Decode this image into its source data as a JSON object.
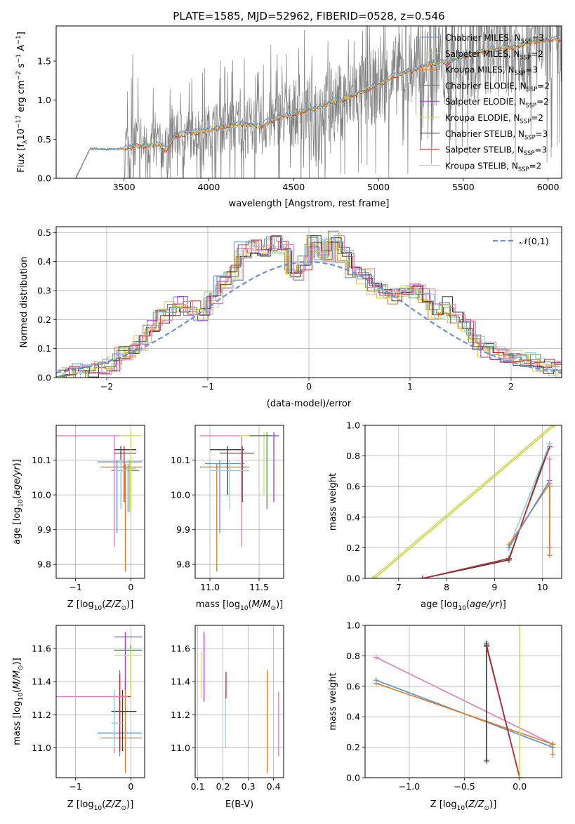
{
  "figure_title": "PLATE=1585, MJD=52962, FIBERID=0528, z=0.546",
  "colors": {
    "Chabrier MILES": "#5b8fd6",
    "Salpeter MILES": "#d4cf3a",
    "Kroupa MILES": "#e07b1e",
    "Chabrier ELODIE": "#5a8a5a",
    "Salpeter ELODIE": "#a13ad0",
    "Kroupa ELODIE": "#c8e060",
    "Chabrier STELIB": "#3b3b3b",
    "Salpeter STELIB": "#c0282c",
    "Kroupa STELIB": "#8fd3d6",
    "data": "#808080",
    "normal": "#6a8fd8",
    "pink": "#e87ab8"
  },
  "chart_data": [
    {
      "id": "spectrum",
      "type": "line",
      "xlabel": "wavelength [Angstrom, rest frame]",
      "ylabel": "Flux [f_λ10^-17 erg cm^-2 s^-1 A^-1]",
      "xlim": [
        3100,
        6080
      ],
      "ylim": [
        0,
        1.95
      ],
      "xticks": [
        3500,
        4000,
        4500,
        5000,
        5500,
        6000
      ],
      "yticks": [
        0.0,
        0.5,
        1.0,
        1.5
      ],
      "legend_position": "top-right",
      "legend": [
        "Chabrier MILES, N_SSP=3",
        "Salpeter MILES, N_SSP=2",
        "Kroupa MILES, N_SSP=3",
        "Chabrier ELODIE, N_SSP=2",
        "Salpeter ELODIE, N_SSP=2",
        "Kroupa ELODIE, N_SSP=2",
        "Chabrier STELIB, N_SSP=3",
        "Salpeter STELIB, N_SSP=3",
        "Kroupa STELIB, N_SSP=2"
      ],
      "model_continuum": {
        "x": [
          3220,
          3300,
          3400,
          3500,
          3600,
          3700,
          3750,
          3800,
          3900,
          4000,
          4100,
          4200,
          4300,
          4400,
          4500,
          4600,
          4700,
          4800,
          4900,
          5000,
          5100,
          5200,
          5300,
          5400,
          5500,
          5600,
          5700,
          5800,
          5900,
          6000
        ],
        "y": [
          0.02,
          0.38,
          0.37,
          0.38,
          0.42,
          0.44,
          0.36,
          0.55,
          0.58,
          0.62,
          0.67,
          0.7,
          0.66,
          0.78,
          0.82,
          0.88,
          0.95,
          1.02,
          1.1,
          1.2,
          1.32,
          1.38,
          1.46,
          1.48,
          1.55,
          1.62,
          1.66,
          1.68,
          1.74,
          1.78
        ]
      }
    },
    {
      "id": "residuals",
      "type": "line",
      "xlabel": "(data-model)/error",
      "ylabel": "Normed distribution",
      "xlim": [
        -2.5,
        2.5
      ],
      "ylim": [
        0,
        0.52
      ],
      "xticks": [
        -2,
        -1,
        0,
        1,
        2
      ],
      "yticks": [
        0.0,
        0.1,
        0.2,
        0.3,
        0.4,
        0.5
      ],
      "legend": [
        "𝒩(0,1)"
      ],
      "legend_position": "top-right",
      "bin_edges_start": -2.5,
      "bin_width": 0.1,
      "histogram": [
        0.005,
        0.01,
        0.02,
        0.03,
        0.04,
        0.05,
        0.08,
        0.09,
        0.12,
        0.17,
        0.21,
        0.24,
        0.25,
        0.24,
        0.22,
        0.27,
        0.33,
        0.36,
        0.44,
        0.45,
        0.43,
        0.46,
        0.44,
        0.36,
        0.39,
        0.46,
        0.42,
        0.48,
        0.42,
        0.36,
        0.35,
        0.31,
        0.3,
        0.28,
        0.3,
        0.3,
        0.28,
        0.23,
        0.25,
        0.21,
        0.18,
        0.12,
        0.1,
        0.09,
        0.08,
        0.07,
        0.06,
        0.05,
        0.04,
        0.03
      ]
    },
    {
      "id": "z_age",
      "type": "scatter",
      "xlabel": "Z [log10(Z/Z⊙)]",
      "ylabel": "age [log10(age/yr)]",
      "xlim": [
        -1.35,
        0.25
      ],
      "ylim": [
        9.76,
        10.2
      ],
      "xticks": [
        -1,
        0
      ],
      "yticks": [
        9.8,
        9.9,
        10.0,
        10.1
      ]
    },
    {
      "id": "mass_age",
      "type": "scatter",
      "xlabel": "mass [log10(M/M⊙)]",
      "xlim": [
        10.85,
        11.75
      ],
      "ylim": [
        9.76,
        10.2
      ],
      "xticks": [
        11.0,
        11.5
      ],
      "yticks": [
        9.8,
        9.9,
        10.0,
        10.1
      ]
    },
    {
      "id": "age_weight",
      "type": "line",
      "xlabel": "age [log10(age/yr)]",
      "ylabel": "mass weight",
      "xlim": [
        6.3,
        10.4
      ],
      "ylim": [
        0,
        1.0
      ],
      "xticks": [
        7,
        8,
        9,
        10
      ],
      "yticks": [
        0.0,
        0.2,
        0.4,
        0.6,
        0.8,
        1.0
      ]
    },
    {
      "id": "z_mass",
      "type": "scatter",
      "xlabel": "Z [log10(Z/Z⊙)]",
      "ylabel": "mass [log10(M/M⊙)]",
      "xlim": [
        -1.35,
        0.25
      ],
      "ylim": [
        10.82,
        11.74
      ],
      "xticks": [
        -1,
        0
      ],
      "yticks": [
        11.0,
        11.2,
        11.4,
        11.6
      ]
    },
    {
      "id": "ebv_mass",
      "type": "scatter",
      "xlabel": "E(B-V)",
      "xlim": [
        0.09,
        0.44
      ],
      "ylim": [
        10.82,
        11.74
      ],
      "xticks": [
        0.1,
        0.2,
        0.3,
        0.4
      ],
      "yticks": [
        11.0,
        11.2,
        11.4,
        11.6
      ]
    },
    {
      "id": "z_weight",
      "type": "line",
      "xlabel": "Z [log10(Z/Z⊙)]",
      "ylabel": "mass weight",
      "xlim": [
        -1.4,
        0.38
      ],
      "ylim": [
        0,
        1.0
      ],
      "xticks": [
        -1.0,
        -0.5,
        0.0
      ],
      "yticks": [
        0.0,
        0.2,
        0.4,
        0.6,
        0.8,
        1.0
      ]
    }
  ]
}
